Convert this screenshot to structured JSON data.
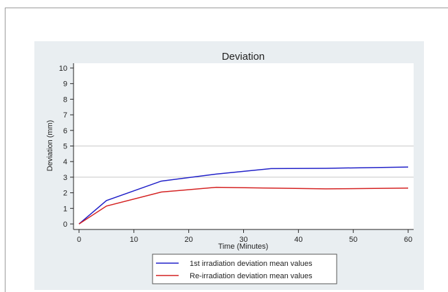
{
  "chart_data": {
    "type": "line",
    "title": "Deviation",
    "xlabel": "Time (Minutes)",
    "ylabel": "Deviation (mm)",
    "xlim": [
      0,
      60
    ],
    "ylim": [
      0,
      10
    ],
    "xticks": [
      0,
      10,
      20,
      30,
      40,
      50,
      60
    ],
    "yticks": [
      0,
      1,
      2,
      3,
      4,
      5,
      6,
      7,
      8,
      9,
      10
    ],
    "grid_lines_y": [
      3,
      5
    ],
    "legend_position": "bottom-center",
    "series": [
      {
        "name": "1st irradiation deviation mean values",
        "color": "#1f1fc8",
        "x": [
          0,
          5,
          15,
          25,
          35,
          45,
          60
        ],
        "y": [
          0,
          1.5,
          2.75,
          3.2,
          3.55,
          3.57,
          3.65
        ]
      },
      {
        "name": "Re-irradiation deviation mean values",
        "color": "#d42020",
        "x": [
          0,
          5,
          15,
          25,
          35,
          45,
          60
        ],
        "y": [
          0,
          1.15,
          2.05,
          2.35,
          2.3,
          2.25,
          2.3
        ]
      }
    ]
  }
}
